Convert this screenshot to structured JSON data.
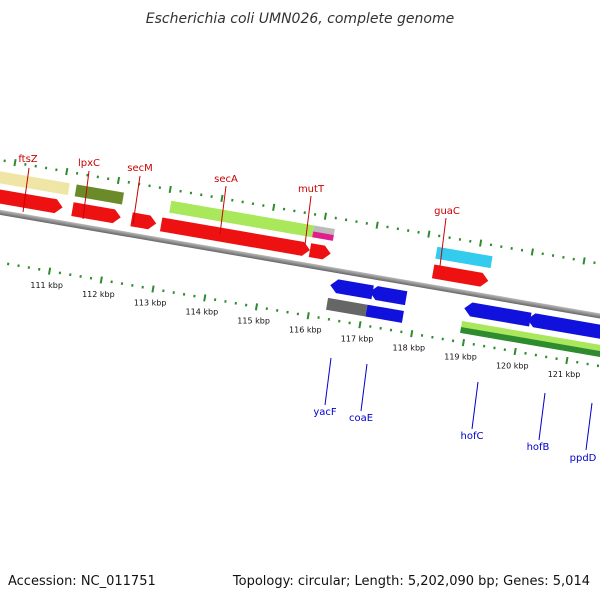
{
  "title": "Escherichia coli UMN026, complete genome",
  "footer": {
    "accession": "Accession: NC_011751",
    "summary": "Topology: circular; Length: 5,202,090 bp; Genes: 5,014"
  },
  "colors": {
    "forward_label": "#cc0000",
    "reverse_label": "#0000cc",
    "tick": "#2e8b2e",
    "backbone": "#888888"
  },
  "ticks": [
    "111 kbp",
    "112 kbp",
    "113 kbp",
    "114 kbp",
    "115 kbp",
    "116 kbp",
    "117 kbp",
    "118 kbp",
    "119 kbp",
    "120 kbp",
    "121 kbp"
  ],
  "genes_forward": [
    {
      "name": "ftsZ"
    },
    {
      "name": "lpxC"
    },
    {
      "name": "secM"
    },
    {
      "name": "secA"
    },
    {
      "name": "mutT"
    },
    {
      "name": "guaC"
    }
  ],
  "genes_reverse": [
    {
      "name": "yacF"
    },
    {
      "name": "coaE"
    },
    {
      "name": "hofC"
    },
    {
      "name": "hofB"
    },
    {
      "name": "ppdD"
    }
  ]
}
